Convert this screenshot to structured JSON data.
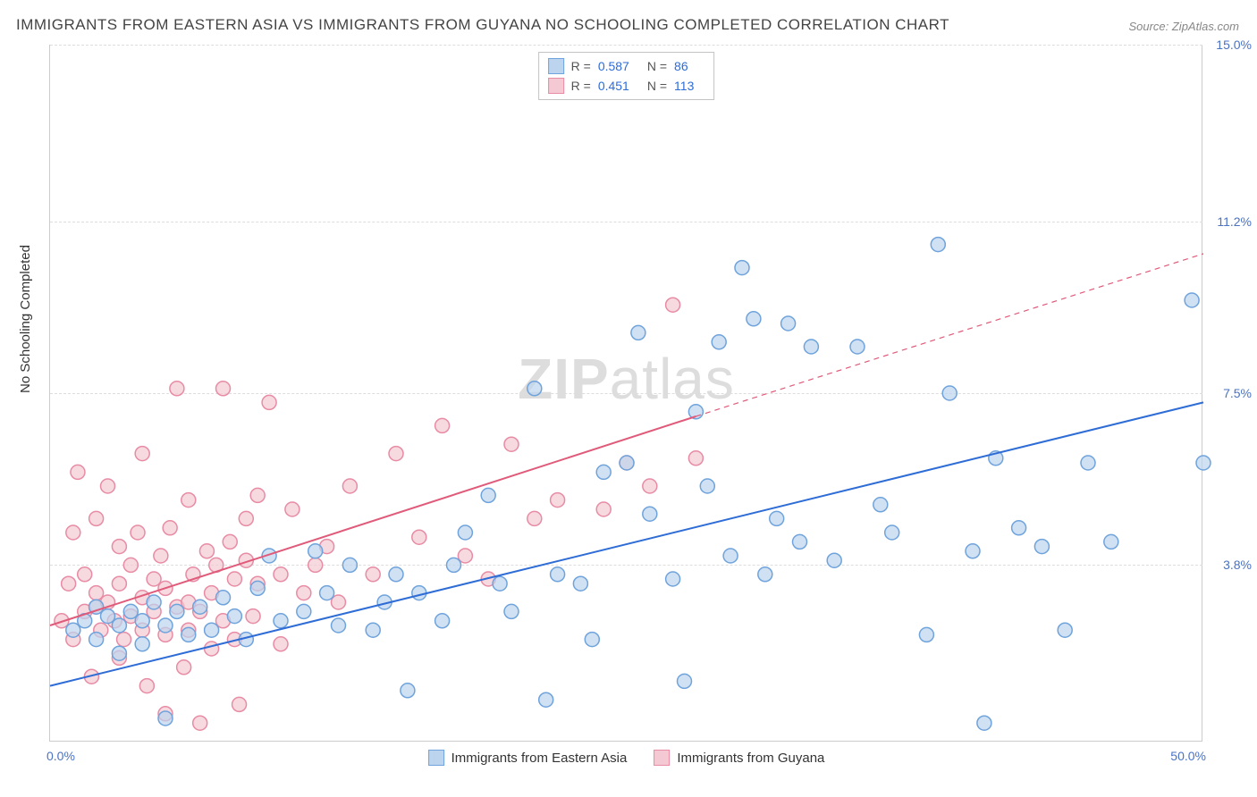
{
  "title": "IMMIGRANTS FROM EASTERN ASIA VS IMMIGRANTS FROM GUYANA NO SCHOOLING COMPLETED CORRELATION CHART",
  "source": "Source: ZipAtlas.com",
  "ylabel": "No Schooling Completed",
  "watermark": "ZIPatlas",
  "chart": {
    "type": "scatter",
    "xlim": [
      0,
      50
    ],
    "ylim": [
      0,
      15
    ],
    "yticks": [
      3.8,
      7.5,
      11.2,
      15.0
    ],
    "xticks": [
      0.0,
      50.0
    ],
    "grid_color": "#dddddd",
    "axis_color": "#cccccc",
    "background_color": "#ffffff",
    "tick_color": "#4a73c4",
    "tick_fontsize": 14,
    "label_fontsize": 15,
    "title_fontsize": 17,
    "marker_radius": 8,
    "marker_stroke_width": 1.5,
    "trend_line_width": 2
  },
  "series": [
    {
      "key": "eastern_asia",
      "label": "Immigrants from Eastern Asia",
      "fill_color": "#bcd4ee",
      "stroke_color": "#6fa3dc",
      "line_color": "#2e6cd6",
      "R": "0.587",
      "N": "86",
      "trend": {
        "x1": 0,
        "y1": 1.2,
        "x2": 50,
        "y2": 7.3,
        "dashed": false
      },
      "trend_ext": null,
      "points": [
        [
          1,
          2.4
        ],
        [
          1.5,
          2.6
        ],
        [
          2,
          2.2
        ],
        [
          2,
          2.9
        ],
        [
          2.5,
          2.7
        ],
        [
          3,
          2.5
        ],
        [
          3,
          1.9
        ],
        [
          3.5,
          2.8
        ],
        [
          4,
          2.6
        ],
        [
          4,
          2.1
        ],
        [
          4.5,
          3.0
        ],
        [
          5,
          2.5
        ],
        [
          5,
          0.5
        ],
        [
          5.5,
          2.8
        ],
        [
          6,
          2.3
        ],
        [
          6.5,
          2.9
        ],
        [
          7,
          2.4
        ],
        [
          7.5,
          3.1
        ],
        [
          8,
          2.7
        ],
        [
          8.5,
          2.2
        ],
        [
          9,
          3.3
        ],
        [
          9.5,
          4.0
        ],
        [
          10,
          2.6
        ],
        [
          11,
          2.8
        ],
        [
          11.5,
          4.1
        ],
        [
          12,
          3.2
        ],
        [
          12.5,
          2.5
        ],
        [
          13,
          3.8
        ],
        [
          14,
          2.4
        ],
        [
          14.5,
          3.0
        ],
        [
          15,
          3.6
        ],
        [
          15.5,
          1.1
        ],
        [
          16,
          3.2
        ],
        [
          17,
          2.6
        ],
        [
          17.5,
          3.8
        ],
        [
          18,
          4.5
        ],
        [
          19,
          5.3
        ],
        [
          19.5,
          3.4
        ],
        [
          20,
          2.8
        ],
        [
          21,
          7.6
        ],
        [
          21.5,
          0.9
        ],
        [
          22,
          3.6
        ],
        [
          23,
          3.4
        ],
        [
          23.5,
          2.2
        ],
        [
          24,
          5.8
        ],
        [
          25,
          6.0
        ],
        [
          25.5,
          8.8
        ],
        [
          26,
          4.9
        ],
        [
          27,
          3.5
        ],
        [
          27.5,
          1.3
        ],
        [
          28,
          7.1
        ],
        [
          28.5,
          5.5
        ],
        [
          29,
          8.6
        ],
        [
          29.5,
          4.0
        ],
        [
          30,
          10.2
        ],
        [
          30.5,
          9.1
        ],
        [
          31,
          3.6
        ],
        [
          31.5,
          4.8
        ],
        [
          32,
          9.0
        ],
        [
          32.5,
          4.3
        ],
        [
          33,
          8.5
        ],
        [
          34,
          3.9
        ],
        [
          35,
          8.5
        ],
        [
          36,
          5.1
        ],
        [
          36.5,
          4.5
        ],
        [
          38,
          2.3
        ],
        [
          38.5,
          10.7
        ],
        [
          39,
          7.5
        ],
        [
          40,
          4.1
        ],
        [
          40.5,
          0.4
        ],
        [
          41,
          6.1
        ],
        [
          42,
          4.6
        ],
        [
          43,
          4.2
        ],
        [
          44,
          2.4
        ],
        [
          45,
          6.0
        ],
        [
          46,
          4.3
        ],
        [
          49.5,
          9.5
        ],
        [
          50,
          6.0
        ]
      ]
    },
    {
      "key": "guyana",
      "label": "Immigrants from Guyana",
      "fill_color": "#f4c9d3",
      "stroke_color": "#e88ba4",
      "line_color": "#e05a7a",
      "R": "0.451",
      "N": "113",
      "trend": {
        "x1": 0,
        "y1": 2.5,
        "x2": 28,
        "y2": 7.0,
        "dashed": false
      },
      "trend_ext": {
        "x1": 28,
        "y1": 7.0,
        "x2": 50,
        "y2": 10.5,
        "dashed": true
      },
      "points": [
        [
          0.5,
          2.6
        ],
        [
          0.8,
          3.4
        ],
        [
          1,
          2.2
        ],
        [
          1,
          4.5
        ],
        [
          1.2,
          5.8
        ],
        [
          1.5,
          2.8
        ],
        [
          1.5,
          3.6
        ],
        [
          1.8,
          1.4
        ],
        [
          2,
          2.9
        ],
        [
          2,
          3.2
        ],
        [
          2,
          4.8
        ],
        [
          2.2,
          2.4
        ],
        [
          2.5,
          3.0
        ],
        [
          2.5,
          5.5
        ],
        [
          2.8,
          2.6
        ],
        [
          3,
          3.4
        ],
        [
          3,
          1.8
        ],
        [
          3,
          4.2
        ],
        [
          3.2,
          2.2
        ],
        [
          3.5,
          2.7
        ],
        [
          3.5,
          3.8
        ],
        [
          3.8,
          4.5
        ],
        [
          4,
          2.4
        ],
        [
          4,
          3.1
        ],
        [
          4,
          6.2
        ],
        [
          4.2,
          1.2
        ],
        [
          4.5,
          2.8
        ],
        [
          4.5,
          3.5
        ],
        [
          4.8,
          4.0
        ],
        [
          5,
          2.3
        ],
        [
          5,
          3.3
        ],
        [
          5,
          0.6
        ],
        [
          5.2,
          4.6
        ],
        [
          5.5,
          2.9
        ],
        [
          5.5,
          7.6
        ],
        [
          5.8,
          1.6
        ],
        [
          6,
          3.0
        ],
        [
          6,
          2.4
        ],
        [
          6,
          5.2
        ],
        [
          6.2,
          3.6
        ],
        [
          6.5,
          2.8
        ],
        [
          6.5,
          0.4
        ],
        [
          6.8,
          4.1
        ],
        [
          7,
          3.2
        ],
        [
          7,
          2.0
        ],
        [
          7.2,
          3.8
        ],
        [
          7.5,
          2.6
        ],
        [
          7.5,
          7.6
        ],
        [
          7.8,
          4.3
        ],
        [
          8,
          3.5
        ],
        [
          8,
          2.2
        ],
        [
          8.2,
          0.8
        ],
        [
          8.5,
          3.9
        ],
        [
          8.5,
          4.8
        ],
        [
          8.8,
          2.7
        ],
        [
          9,
          3.4
        ],
        [
          9,
          5.3
        ],
        [
          9.5,
          7.3
        ],
        [
          10,
          3.6
        ],
        [
          10,
          2.1
        ],
        [
          10.5,
          5.0
        ],
        [
          11,
          3.2
        ],
        [
          11.5,
          3.8
        ],
        [
          12,
          4.2
        ],
        [
          12.5,
          3.0
        ],
        [
          13,
          5.5
        ],
        [
          14,
          3.6
        ],
        [
          15,
          6.2
        ],
        [
          16,
          4.4
        ],
        [
          17,
          6.8
        ],
        [
          18,
          4.0
        ],
        [
          19,
          3.5
        ],
        [
          20,
          6.4
        ],
        [
          21,
          4.8
        ],
        [
          22,
          5.2
        ],
        [
          24,
          5.0
        ],
        [
          25,
          6.0
        ],
        [
          26,
          5.5
        ],
        [
          27,
          9.4
        ],
        [
          28,
          6.1
        ]
      ]
    }
  ],
  "stats_labels": {
    "R": "R =",
    "N": "N ="
  },
  "xtick_labels": {
    "min": "0.0%",
    "max": "50.0%"
  }
}
